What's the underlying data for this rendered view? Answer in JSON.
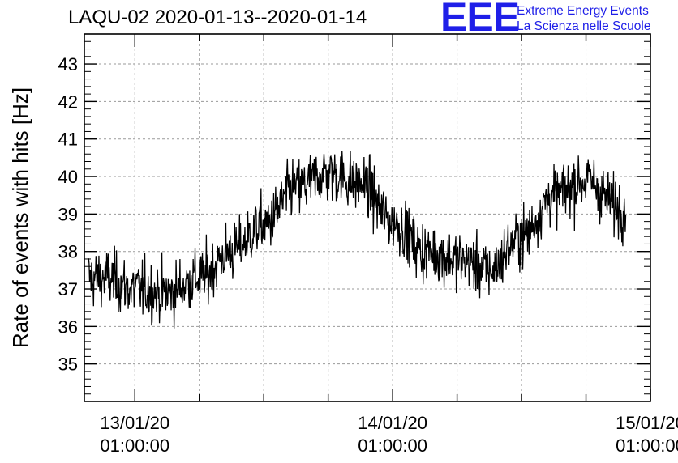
{
  "chart_data": {
    "type": "line",
    "title": "LAQU-02 2020-01-13--2020-01-14",
    "ylabel": "Rate of events with hits [Hz]",
    "xlabel": "",
    "xlim": [
      "2020-01-12 20:18",
      "2020-01-15 01:00"
    ],
    "ylim": [
      34,
      43.8
    ],
    "grid": true,
    "x_ticks": [
      {
        "value": "2020-01-13 01:00",
        "date": "13/01/20",
        "time": "01:00:00"
      },
      {
        "value": "2020-01-14 01:00",
        "date": "14/01/20",
        "time": "01:00:00"
      },
      {
        "value": "2020-01-15 01:00",
        "date": "15/01/20",
        "time": "01:00:00"
      }
    ],
    "y_ticks": [
      35,
      36,
      37,
      38,
      39,
      40,
      41,
      42,
      43
    ],
    "series": [
      {
        "x": [
          "2020-01-12 22:00",
          "2020-01-13 01:00",
          "2020-01-13 04:00",
          "2020-01-13 07:00",
          "2020-01-13 10:00",
          "2020-01-13 13:00",
          "2020-01-13 16:00",
          "2020-01-13 19:00",
          "2020-01-13 22:00",
          "2020-01-14 01:00",
          "2020-01-14 04:00",
          "2020-01-14 07:00",
          "2020-01-14 10:00",
          "2020-01-14 13:00",
          "2020-01-14 16:00",
          "2020-01-14 19:00",
          "2020-01-14 22:00"
        ],
        "y": [
          37.3,
          37.0,
          36.9,
          37.3,
          38.0,
          38.7,
          39.7,
          40.1,
          39.8,
          38.8,
          38.0,
          37.8,
          37.5,
          38.4,
          39.5,
          39.9,
          39.2
        ]
      }
    ]
  },
  "logo": {
    "mark": "EEE",
    "line1": "Extreme Energy Events",
    "line2": "La Scienza nelle Scuole",
    "color": "#1f1fe8"
  }
}
